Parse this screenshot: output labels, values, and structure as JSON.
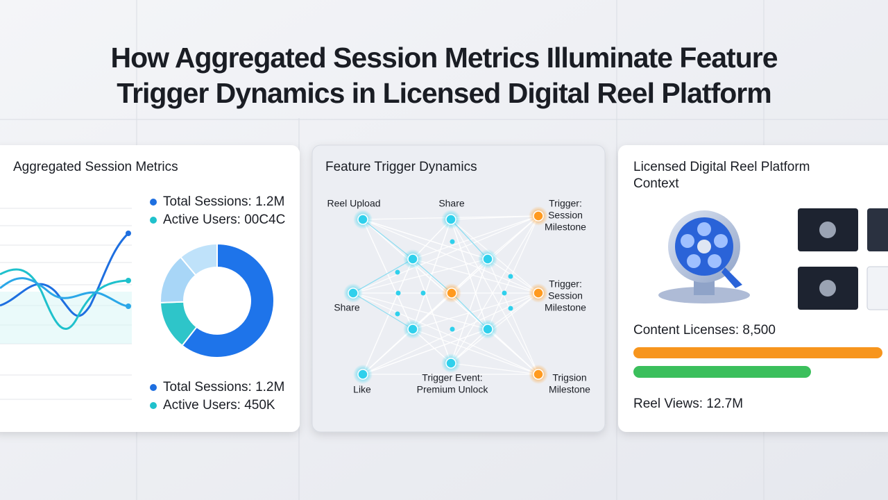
{
  "header": {
    "title_lines": [
      "How Aggregated Session Metrics Illuminate Feature",
      "Trigger Dynamics in Licensed Digital Reel Platform"
    ]
  },
  "panels": [
    {
      "title": "Aggregated Session Metrics",
      "legend_top": [
        "Total Sessions: 1.2M",
        "Active Users: 00C4C"
      ],
      "legend_bottom": [
        "Total Sessions: 1.2M",
        "Active Users: 450K"
      ]
    },
    {
      "title": "Feature Trigger Dynamics",
      "nodes": [
        {
          "label": [
            "Reel Upload"
          ]
        },
        {
          "label": [
            "Share"
          ]
        },
        {
          "label": [
            "Trigger:",
            "Session",
            "Milestone"
          ]
        },
        {
          "label": [
            "Share"
          ]
        },
        {
          "label": [
            "Trigger:",
            "Session",
            "Milestone"
          ]
        },
        {
          "label": [
            "Like"
          ]
        },
        {
          "label": [
            "Trigger Event:",
            "Premium Unlock"
          ]
        },
        {
          "label": [
            "Trigsion",
            "Milestone"
          ]
        }
      ]
    },
    {
      "title_lines": [
        "Licensed Digital Reel Platform",
        "Context"
      ],
      "metrics": [
        "Content Licenses: 8,500",
        "Reel Views: 12.7M"
      ]
    }
  ]
}
